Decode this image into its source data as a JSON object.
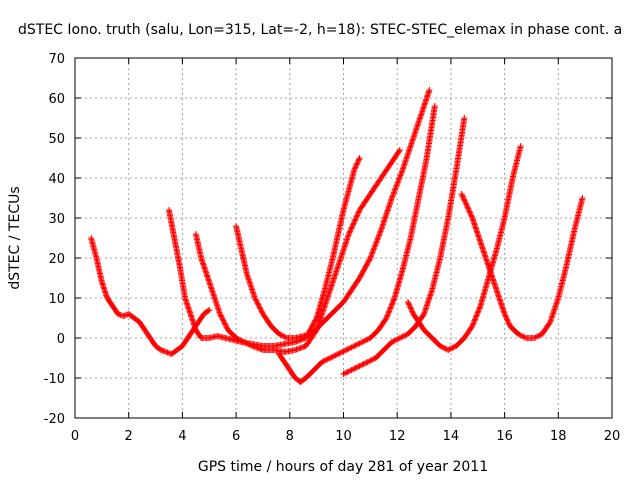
{
  "chart_data": {
    "type": "scatter",
    "title": "dSTEC Iono. truth (salu, Lon=315, Lat=-2, h=18): STEC-STEC_elemax in phase cont. a",
    "xlabel": "GPS time / hours of day 281 of year 2011",
    "ylabel": "dSTEC  / TECUs",
    "xlim": [
      0,
      20
    ],
    "ylim": [
      -20,
      70
    ],
    "x_ticks": [
      0,
      2,
      4,
      6,
      8,
      10,
      12,
      14,
      16,
      18,
      20
    ],
    "y_ticks": [
      -20,
      -10,
      0,
      10,
      20,
      30,
      40,
      50,
      60,
      70
    ],
    "x_tick_labels": [
      "0",
      "2",
      "4",
      "6",
      "8",
      "10",
      "12",
      "14",
      "16",
      "18",
      "20"
    ],
    "y_tick_labels": [
      "-20",
      "-10",
      "0",
      "10",
      "20",
      "30",
      "40",
      "50",
      "60",
      "70"
    ],
    "grid": true,
    "marker": "+",
    "color": "#ff0000",
    "series": [
      {
        "x": [
          0.6,
          0.8,
          1.0,
          1.2,
          1.4,
          1.6,
          1.8,
          2.0,
          2.2,
          2.4,
          2.6,
          2.8,
          3.0,
          3.2,
          3.4,
          3.6,
          3.8,
          4.0,
          4.2,
          4.4,
          4.6,
          4.8,
          5.0
        ],
        "y": [
          25,
          20,
          14,
          10,
          8,
          6,
          5.5,
          6,
          5,
          4,
          2,
          0,
          -2,
          -3,
          -3.5,
          -4,
          -3,
          -2,
          0,
          2,
          4,
          6,
          7
        ]
      },
      {
        "x": [
          3.5,
          3.7,
          3.9,
          4.1,
          4.3,
          4.5,
          4.7,
          5.0,
          5.3,
          5.6,
          5.9,
          6.2,
          6.6,
          7.0,
          7.4,
          7.8,
          8.2,
          8.6,
          9.0,
          9.3,
          9.6,
          9.8,
          10.0,
          10.2,
          10.4,
          10.6
        ],
        "y": [
          32,
          25,
          18,
          10,
          6,
          2,
          0,
          0,
          0.5,
          0,
          -0.5,
          -1,
          -1.5,
          -2,
          -2,
          -1.5,
          -1,
          0,
          5,
          12,
          20,
          26,
          32,
          37,
          42,
          45
        ]
      },
      {
        "x": [
          4.5,
          4.7,
          4.9,
          5.1,
          5.4,
          5.7,
          6.0,
          6.3,
          6.6,
          7.0,
          7.4,
          7.8,
          8.2,
          8.6,
          9.0,
          9.4,
          9.8,
          10.2,
          10.6,
          11.0,
          11.4,
          11.8,
          12.1
        ],
        "y": [
          26,
          20,
          16,
          12,
          6,
          2,
          0,
          -1,
          -2,
          -3,
          -3,
          -3.5,
          -3,
          -2,
          2,
          10,
          18,
          26,
          32,
          36,
          40,
          44,
          47
        ]
      },
      {
        "x": [
          6.0,
          6.2,
          6.4,
          6.7,
          7.0,
          7.3,
          7.6,
          7.9,
          8.2,
          8.5,
          8.8,
          9.1,
          9.4,
          9.7,
          10.0,
          10.3,
          10.6,
          11.0,
          11.4,
          11.8,
          12.2,
          12.6,
          13.0,
          13.2
        ],
        "y": [
          28,
          22,
          16,
          10,
          6,
          3,
          1,
          0,
          0,
          0.5,
          1,
          3,
          5,
          7,
          9,
          12,
          15,
          20,
          27,
          35,
          42,
          50,
          58,
          62
        ]
      },
      {
        "x": [
          7.6,
          7.8,
          8.0,
          8.2,
          8.4,
          8.6,
          8.9,
          9.2,
          9.5,
          9.8,
          10.1,
          10.4,
          10.7,
          11.0,
          11.3,
          11.6,
          11.9,
          12.2,
          12.5,
          12.8,
          13.1,
          13.4
        ],
        "y": [
          -4,
          -6,
          -8,
          -10,
          -11,
          -10,
          -8,
          -6,
          -5,
          -4,
          -3,
          -2,
          -1,
          0,
          2,
          5,
          10,
          17,
          25,
          35,
          45,
          58
        ]
      },
      {
        "x": [
          10.0,
          10.3,
          10.6,
          10.9,
          11.2,
          11.5,
          11.8,
          12.1,
          12.4,
          12.7,
          13.0,
          13.3,
          13.6,
          13.9,
          14.2,
          14.5
        ],
        "y": [
          -9,
          -8,
          -7,
          -6,
          -5,
          -3,
          -1,
          0,
          1,
          3,
          6,
          12,
          20,
          30,
          42,
          55
        ]
      },
      {
        "x": [
          12.4,
          12.6,
          12.8,
          13.0,
          13.3,
          13.6,
          13.9,
          14.2,
          14.5,
          14.8,
          15.1,
          15.4,
          15.7,
          16.0,
          16.3,
          16.6
        ],
        "y": [
          9,
          6,
          4,
          2,
          0,
          -2,
          -3,
          -2,
          0,
          3,
          8,
          15,
          22,
          30,
          40,
          48
        ]
      },
      {
        "x": [
          14.4,
          14.6,
          14.8,
          15.0,
          15.2,
          15.4,
          15.6,
          15.8,
          16.0,
          16.2,
          16.5,
          16.8,
          17.1,
          17.4,
          17.7,
          18.0,
          18.3,
          18.6,
          18.9
        ],
        "y": [
          36,
          33,
          30,
          26,
          22,
          18,
          14,
          10,
          6,
          3,
          1,
          0,
          0,
          1,
          4,
          10,
          18,
          27,
          35
        ]
      }
    ]
  }
}
